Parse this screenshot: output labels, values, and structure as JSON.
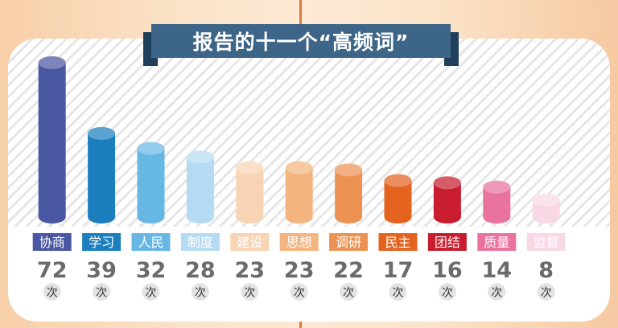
{
  "colors": {
    "title_bg": "#3d6587",
    "count_text": "#6b6b6b",
    "bars": [
      "#4a57a2",
      "#1b7fbe",
      "#67b7e5",
      "#b5dbf2",
      "#f8d4b4",
      "#f3b47f",
      "#ec9354",
      "#e4631f",
      "#c81d2e",
      "#e9739f",
      "#f8d8e5"
    ]
  },
  "chart_data": {
    "type": "bar",
    "title": "报告的十一个“高频词”",
    "categories": [
      "协商",
      "学习",
      "人民",
      "制度",
      "建设",
      "思想",
      "调研",
      "民主",
      "团结",
      "质量",
      "监督"
    ],
    "values": [
      72,
      39,
      32,
      28,
      23,
      23,
      22,
      17,
      16,
      14,
      8
    ],
    "unit": "次",
    "ylim": [
      0,
      72
    ],
    "grid": false
  }
}
